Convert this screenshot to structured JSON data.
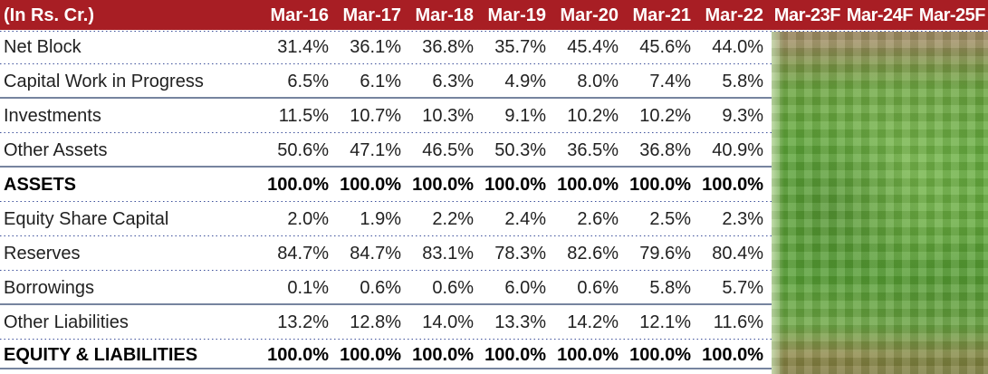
{
  "header": {
    "unit_label": "(In Rs. Cr.)",
    "columns": [
      "Mar-16",
      "Mar-17",
      "Mar-18",
      "Mar-19",
      "Mar-20",
      "Mar-21",
      "Mar-22",
      "Mar-23F",
      "Mar-24F",
      "Mar-25F"
    ]
  },
  "rows": [
    {
      "label": "Net Block",
      "bold": false,
      "values": [
        "31.4%",
        "36.1%",
        "36.8%",
        "35.7%",
        "45.4%",
        "45.6%",
        "44.0%"
      ]
    },
    {
      "label": "Capital Work in Progress",
      "bold": false,
      "values": [
        "6.5%",
        "6.1%",
        "6.3%",
        "4.9%",
        "8.0%",
        "7.4%",
        "5.8%"
      ]
    },
    {
      "label": "Investments",
      "bold": false,
      "values": [
        "11.5%",
        "10.7%",
        "10.3%",
        "9.1%",
        "10.2%",
        "10.2%",
        "9.3%"
      ]
    },
    {
      "label": "Other Assets",
      "bold": false,
      "values": [
        "50.6%",
        "47.1%",
        "46.5%",
        "50.3%",
        "36.5%",
        "36.8%",
        "40.9%"
      ]
    },
    {
      "label": "ASSETS",
      "bold": true,
      "values": [
        "100.0%",
        "100.0%",
        "100.0%",
        "100.0%",
        "100.0%",
        "100.0%",
        "100.0%"
      ]
    },
    {
      "label": "Equity Share Capital",
      "bold": false,
      "values": [
        "2.0%",
        "1.9%",
        "2.2%",
        "2.4%",
        "2.6%",
        "2.5%",
        "2.3%"
      ]
    },
    {
      "label": "Reserves",
      "bold": false,
      "values": [
        "84.7%",
        "84.7%",
        "83.1%",
        "78.3%",
        "82.6%",
        "79.6%",
        "80.4%"
      ]
    },
    {
      "label": "Borrowings",
      "bold": false,
      "values": [
        "0.1%",
        "0.6%",
        "0.6%",
        "6.0%",
        "0.6%",
        "5.8%",
        "5.7%"
      ]
    },
    {
      "label": "Other Liabilities",
      "bold": false,
      "values": [
        "13.2%",
        "12.8%",
        "14.0%",
        "13.3%",
        "14.2%",
        "12.1%",
        "11.6%"
      ]
    },
    {
      "label": "EQUITY & LIABILITIES",
      "bold": true,
      "values": [
        "100.0%",
        "100.0%",
        "100.0%",
        "100.0%",
        "100.0%",
        "100.0%",
        "100.0%"
      ]
    }
  ],
  "censored_region": {
    "columns": [
      "Mar-23F",
      "Mar-24F",
      "Mar-25F"
    ],
    "appearance": "pixelated green mosaic blur hiding forecast values"
  },
  "colors": {
    "header_bg": "#a81e24",
    "header_text": "#ffffff",
    "dotted_divider": "#3e519b",
    "solid_divider": "#76849f",
    "body_text": "#212121",
    "censor_green": "#5fa93a",
    "censor_tan_top": "#a8906b",
    "censor_olive_bottom": "#7d7a3f"
  },
  "chart_data": {
    "type": "table",
    "title": "(In Rs. Cr.)",
    "categories": [
      "Mar-16",
      "Mar-17",
      "Mar-18",
      "Mar-19",
      "Mar-20",
      "Mar-21",
      "Mar-22",
      "Mar-23F",
      "Mar-24F",
      "Mar-25F"
    ],
    "series": [
      {
        "name": "Net Block",
        "values": [
          31.4,
          36.1,
          36.8,
          35.7,
          45.4,
          45.6,
          44.0,
          null,
          null,
          null
        ]
      },
      {
        "name": "Capital Work in Progress",
        "values": [
          6.5,
          6.1,
          6.3,
          4.9,
          8.0,
          7.4,
          5.8,
          null,
          null,
          null
        ]
      },
      {
        "name": "Investments",
        "values": [
          11.5,
          10.7,
          10.3,
          9.1,
          10.2,
          10.2,
          9.3,
          null,
          null,
          null
        ]
      },
      {
        "name": "Other Assets",
        "values": [
          50.6,
          47.1,
          46.5,
          50.3,
          36.5,
          36.8,
          40.9,
          null,
          null,
          null
        ]
      },
      {
        "name": "ASSETS",
        "values": [
          100.0,
          100.0,
          100.0,
          100.0,
          100.0,
          100.0,
          100.0,
          null,
          null,
          null
        ]
      },
      {
        "name": "Equity Share Capital",
        "values": [
          2.0,
          1.9,
          2.2,
          2.4,
          2.6,
          2.5,
          2.3,
          null,
          null,
          null
        ]
      },
      {
        "name": "Reserves",
        "values": [
          84.7,
          84.7,
          83.1,
          78.3,
          82.6,
          79.6,
          80.4,
          null,
          null,
          null
        ]
      },
      {
        "name": "Borrowings",
        "values": [
          0.1,
          0.6,
          0.6,
          6.0,
          0.6,
          5.8,
          5.7,
          null,
          null,
          null
        ]
      },
      {
        "name": "Other Liabilities",
        "values": [
          13.2,
          12.8,
          14.0,
          13.3,
          14.2,
          12.1,
          11.6,
          null,
          null,
          null
        ]
      },
      {
        "name": "EQUITY & LIABILITIES",
        "values": [
          100.0,
          100.0,
          100.0,
          100.0,
          100.0,
          100.0,
          100.0,
          null,
          null,
          null
        ]
      }
    ],
    "units": "percent of total (common-size)",
    "note": "Values for Mar-23F, Mar-24F, Mar-25F are hidden by a pixelated censor overlay"
  }
}
